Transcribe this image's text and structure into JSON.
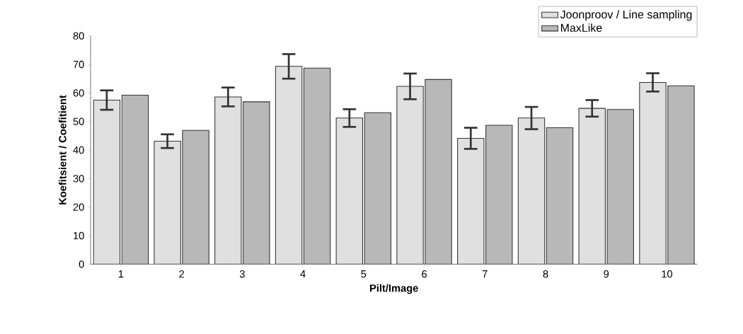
{
  "chart_data": {
    "type": "bar",
    "xlabel": "Pilt/Image",
    "ylabel": "Koefitsient / Coefitient",
    "categories": [
      "1",
      "2",
      "3",
      "4",
      "5",
      "6",
      "7",
      "8",
      "9",
      "10"
    ],
    "series": [
      {
        "name": "Joonproov / Line sampling",
        "color": "#e0e0e0",
        "values": [
          57.5,
          43.1,
          58.6,
          69.3,
          51.2,
          62.3,
          44.1,
          51.2,
          54.6,
          63.7
        ],
        "errors": [
          3.4,
          2.4,
          3.3,
          4.3,
          3.1,
          4.5,
          3.7,
          3.9,
          2.9,
          3.2
        ]
      },
      {
        "name": "MaxLike",
        "color": "#b8b8b8",
        "values": [
          59.2,
          46.9,
          56.9,
          68.7,
          53.1,
          64.7,
          48.7,
          47.8,
          54.2,
          62.5
        ]
      }
    ],
    "ylim": [
      0,
      80
    ],
    "yticks": [
      0,
      10,
      20,
      30,
      40,
      50,
      60,
      70,
      80
    ],
    "grid": false,
    "legend": "top right"
  }
}
